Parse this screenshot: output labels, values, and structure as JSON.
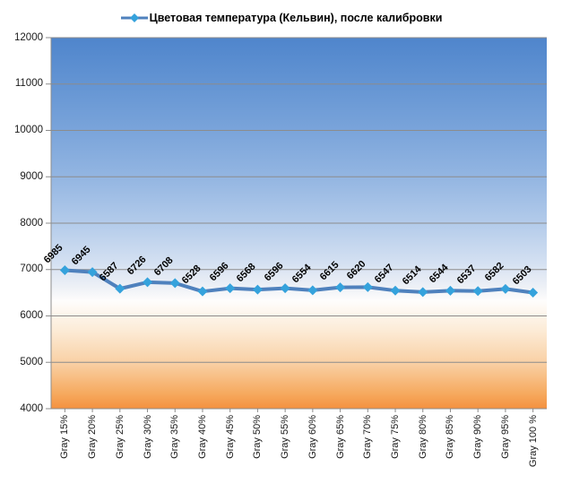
{
  "legend": {
    "label": "Цветовая температура (Кельвин), после калибровки"
  },
  "chart_data": {
    "type": "line",
    "title": "Цветовая температура (Кельвин), после калибровки",
    "categories": [
      "Gray 15%",
      "Gray 20%",
      "Gray 25%",
      "Gray 30%",
      "Gray 35%",
      "Gray 40%",
      "Gray 45%",
      "Gray 50%",
      "Gray 55%",
      "Gray 60%",
      "Gray 65%",
      "Gray 70%",
      "Gray 75%",
      "Gray 80%",
      "Gray 85%",
      "Gray 90%",
      "Gray 95%",
      "Gray 100 %"
    ],
    "values": [
      6985,
      6945,
      6587,
      6726,
      6708,
      6528,
      6596,
      6568,
      6596,
      6554,
      6615,
      6620,
      6547,
      6514,
      6544,
      6537,
      6582,
      6503
    ],
    "xlabel": "",
    "ylabel": "",
    "ylim": [
      4000,
      12000
    ],
    "ytick_step": 1000,
    "yticks": [
      12000,
      11000,
      10000,
      9000,
      8000,
      7000,
      6000,
      5000,
      4000
    ],
    "grid": true,
    "data_labels": true,
    "legend_position": "top-center",
    "colors": {
      "line": "#4f81bd",
      "marker": "#35a2dc",
      "grid": "#8c8c8c",
      "axis": "#8c8c8c",
      "text": "#000000",
      "plot_bg_top": "#4f85cc",
      "plot_bg_middle": "#fefdfc",
      "plot_bg_bottom": "#f4913f"
    }
  }
}
